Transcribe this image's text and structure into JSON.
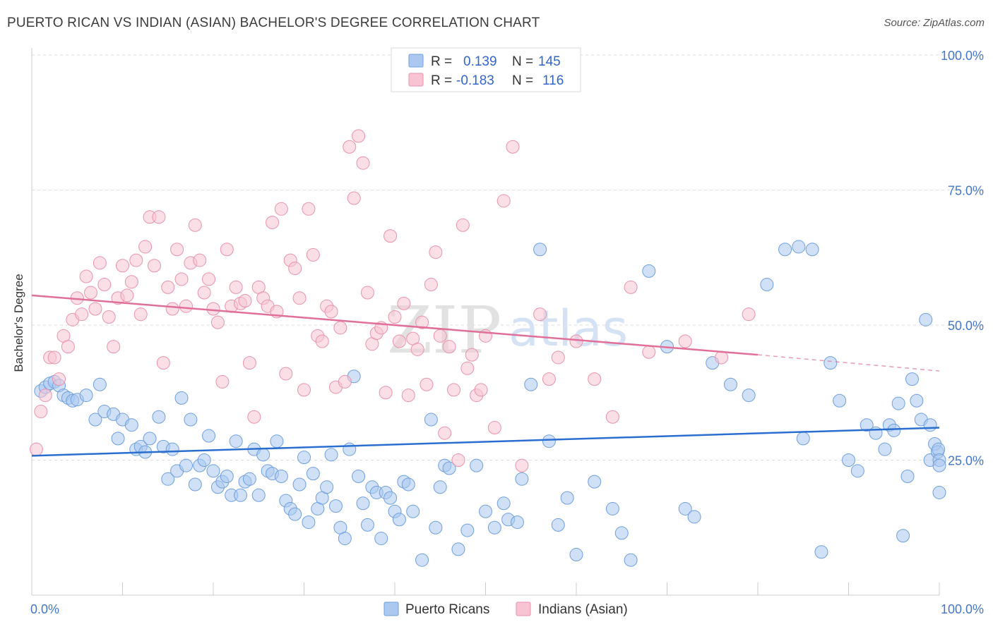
{
  "header": {
    "title": "PUERTO RICAN VS INDIAN (ASIAN) BACHELOR'S DEGREE CORRELATION CHART",
    "source": "Source: ZipAtlas.com"
  },
  "watermark": {
    "zip": "ZIP",
    "atlas": "atlas"
  },
  "legend": {
    "rows": [
      {
        "r_label": "R =",
        "r_value": "0.139",
        "n_label": "N =",
        "n_value": "145",
        "color": "#aac8f0",
        "stroke": "#6f9fdc"
      },
      {
        "r_label": "R =",
        "r_value": "-0.183",
        "n_label": "N =",
        "n_value": "116",
        "color": "#f8c4d4",
        "stroke": "#e892ac"
      }
    ]
  },
  "bottom_legend": [
    {
      "label": "Puerto Ricans",
      "color": "#aac8f0",
      "stroke": "#6f9fdc"
    },
    {
      "label": "Indians (Asian)",
      "color": "#f8c4d4",
      "stroke": "#e892ac"
    }
  ],
  "chart_data": {
    "type": "scatter",
    "title": "PUERTO RICAN VS INDIAN (ASIAN) BACHELOR'S DEGREE CORRELATION CHART",
    "xlabel": "",
    "ylabel": "Bachelor's Degree",
    "xlim": [
      0,
      100
    ],
    "ylim": [
      0,
      100
    ],
    "x_tick_labels": [
      "0.0%",
      "100.0%"
    ],
    "y_tick_labels": [
      "25.0%",
      "50.0%",
      "75.0%",
      "100.0%"
    ],
    "y_ticks": [
      25,
      50,
      75,
      100
    ],
    "grid": true,
    "legend_position": "top-center",
    "series": [
      {
        "name": "Puerto Ricans",
        "color": "#aac8f0",
        "stroke": "#6f9fdc",
        "trend": {
          "x": [
            0,
            100
          ],
          "y": [
            25.8,
            31.0
          ],
          "color": "#2a6fd0"
        },
        "points": [
          [
            1,
            37.8
          ],
          [
            1.5,
            38.5
          ],
          [
            2,
            39.2
          ],
          [
            2.5,
            39.5
          ],
          [
            3,
            38.8
          ],
          [
            3.5,
            37
          ],
          [
            4,
            36.5
          ],
          [
            4.5,
            36
          ],
          [
            5,
            36.2
          ],
          [
            6,
            37
          ],
          [
            7,
            32.5
          ],
          [
            7.5,
            39
          ],
          [
            8,
            34
          ],
          [
            9,
            33.5
          ],
          [
            9.5,
            29
          ],
          [
            10,
            32.5
          ],
          [
            11,
            31.5
          ],
          [
            11.5,
            27
          ],
          [
            12,
            27.5
          ],
          [
            12.5,
            26.5
          ],
          [
            13,
            29
          ],
          [
            14,
            33
          ],
          [
            14.5,
            27.5
          ],
          [
            15,
            21.5
          ],
          [
            15.5,
            27
          ],
          [
            16,
            23
          ],
          [
            16.5,
            36.5
          ],
          [
            17,
            24
          ],
          [
            17.5,
            32.5
          ],
          [
            18,
            20.5
          ],
          [
            18.5,
            24
          ],
          [
            19,
            25
          ],
          [
            19.5,
            29.5
          ],
          [
            20,
            23
          ],
          [
            20.5,
            20
          ],
          [
            21,
            21
          ],
          [
            21.5,
            22
          ],
          [
            22,
            18.5
          ],
          [
            22.5,
            28.5
          ],
          [
            23,
            18.5
          ],
          [
            23.5,
            21
          ],
          [
            24,
            21.5
          ],
          [
            24.5,
            27
          ],
          [
            25,
            18.5
          ],
          [
            25.5,
            26
          ],
          [
            26,
            23
          ],
          [
            26.5,
            22.5
          ],
          [
            27,
            28.5
          ],
          [
            27.5,
            22
          ],
          [
            28,
            17.5
          ],
          [
            28.5,
            16
          ],
          [
            29,
            15
          ],
          [
            29.5,
            20.5
          ],
          [
            30,
            25.5
          ],
          [
            30.5,
            13.5
          ],
          [
            31,
            22.5
          ],
          [
            31.5,
            16
          ],
          [
            32,
            18
          ],
          [
            32.5,
            20
          ],
          [
            33,
            26
          ],
          [
            33.5,
            16.5
          ],
          [
            34,
            12.5
          ],
          [
            34.5,
            10.5
          ],
          [
            35,
            27
          ],
          [
            35.5,
            40.5
          ],
          [
            36,
            22
          ],
          [
            36.5,
            17
          ],
          [
            37,
            13
          ],
          [
            37.5,
            20
          ],
          [
            38,
            19
          ],
          [
            38.5,
            10.5
          ],
          [
            39,
            19
          ],
          [
            39.5,
            18
          ],
          [
            40,
            15.5
          ],
          [
            40.5,
            14
          ],
          [
            41,
            21
          ],
          [
            41.5,
            20.5
          ],
          [
            42,
            15.5
          ],
          [
            43,
            6.5
          ],
          [
            44,
            32.5
          ],
          [
            44.5,
            12.5
          ],
          [
            45,
            20
          ],
          [
            45.5,
            24
          ],
          [
            46,
            23.5
          ],
          [
            47,
            8.5
          ],
          [
            48,
            12
          ],
          [
            49,
            24
          ],
          [
            50,
            15.5
          ],
          [
            51,
            12.5
          ],
          [
            52,
            17
          ],
          [
            52.5,
            14
          ],
          [
            53.5,
            13.5
          ],
          [
            54,
            21.5
          ],
          [
            55,
            39
          ],
          [
            56,
            64
          ],
          [
            57,
            28.5
          ],
          [
            58,
            13
          ],
          [
            59,
            18
          ],
          [
            60,
            7.5
          ],
          [
            62,
            21
          ],
          [
            64,
            16
          ],
          [
            65,
            11.5
          ],
          [
            66,
            6.5
          ],
          [
            68,
            60
          ],
          [
            70,
            46
          ],
          [
            72,
            16
          ],
          [
            73,
            14.5
          ],
          [
            75,
            43
          ],
          [
            77,
            39
          ],
          [
            79,
            37
          ],
          [
            81,
            57.5
          ],
          [
            83,
            64
          ],
          [
            84.5,
            64.5
          ],
          [
            85,
            29
          ],
          [
            86,
            64
          ],
          [
            87,
            8
          ],
          [
            88,
            43
          ],
          [
            89,
            36
          ],
          [
            90,
            25
          ],
          [
            91,
            23
          ],
          [
            92,
            31.5
          ],
          [
            93,
            30
          ],
          [
            94,
            27
          ],
          [
            94.5,
            31.5
          ],
          [
            95,
            30.5
          ],
          [
            95.5,
            35.5
          ],
          [
            96,
            11
          ],
          [
            96.5,
            22
          ],
          [
            97,
            40
          ],
          [
            97.5,
            36
          ],
          [
            98,
            32.5
          ],
          [
            98.5,
            51
          ],
          [
            99,
            25
          ],
          [
            99,
            31.5
          ],
          [
            99.5,
            28
          ],
          [
            99.8,
            26.5
          ],
          [
            99.9,
            27
          ],
          [
            100,
            25
          ],
          [
            100,
            24
          ],
          [
            100,
            19
          ]
        ]
      },
      {
        "name": "Indians (Asian)",
        "color": "#f8c4d4",
        "stroke": "#e892ac",
        "trend": {
          "x": [
            0,
            80
          ],
          "y": [
            55.5,
            44.5
          ],
          "dashed_to": [
            100,
            41.5
          ],
          "color": "#e0709a"
        },
        "points": [
          [
            0.5,
            27
          ],
          [
            1,
            34
          ],
          [
            1.5,
            37
          ],
          [
            2,
            44
          ],
          [
            2.5,
            44
          ],
          [
            3,
            40
          ],
          [
            3.5,
            48
          ],
          [
            4,
            46
          ],
          [
            4.5,
            51
          ],
          [
            5,
            55
          ],
          [
            5.5,
            52
          ],
          [
            6,
            59
          ],
          [
            6.5,
            56
          ],
          [
            7,
            53
          ],
          [
            7.5,
            61.5
          ],
          [
            8,
            57.5
          ],
          [
            8.5,
            51.5
          ],
          [
            9,
            46
          ],
          [
            9.5,
            55
          ],
          [
            10,
            61
          ],
          [
            10.5,
            55.5
          ],
          [
            11,
            58
          ],
          [
            11.5,
            62
          ],
          [
            12,
            52
          ],
          [
            12.5,
            64.5
          ],
          [
            13,
            70
          ],
          [
            13.5,
            61
          ],
          [
            14,
            70
          ],
          [
            14.5,
            43
          ],
          [
            15,
            57
          ],
          [
            15.5,
            53
          ],
          [
            16,
            64
          ],
          [
            16.5,
            58.5
          ],
          [
            17,
            53.5
          ],
          [
            17.5,
            61.5
          ],
          [
            18,
            68.5
          ],
          [
            18.5,
            62
          ],
          [
            19,
            56
          ],
          [
            19.5,
            58.5
          ],
          [
            20,
            53
          ],
          [
            20.5,
            50.5
          ],
          [
            21,
            39.5
          ],
          [
            21.5,
            64
          ],
          [
            22,
            53.5
          ],
          [
            22.5,
            57
          ],
          [
            23,
            54
          ],
          [
            23.5,
            54.5
          ],
          [
            24,
            43
          ],
          [
            24.5,
            33
          ],
          [
            25,
            57
          ],
          [
            25.5,
            55
          ],
          [
            26,
            53.5
          ],
          [
            26.5,
            69
          ],
          [
            27,
            52.5
          ],
          [
            27.5,
            71.5
          ],
          [
            28,
            41
          ],
          [
            28.5,
            62
          ],
          [
            29,
            60.5
          ],
          [
            29.5,
            55
          ],
          [
            30,
            38
          ],
          [
            30.5,
            71.5
          ],
          [
            31,
            63
          ],
          [
            31.5,
            48
          ],
          [
            32,
            47
          ],
          [
            32.5,
            53.5
          ],
          [
            33,
            52.5
          ],
          [
            33.5,
            38.5
          ],
          [
            34,
            49.5
          ],
          [
            34.5,
            39.5
          ],
          [
            35,
            83
          ],
          [
            35.5,
            73.5
          ],
          [
            36,
            85
          ],
          [
            36.5,
            80
          ],
          [
            37,
            56
          ],
          [
            37.5,
            46.5
          ],
          [
            38,
            48.5
          ],
          [
            38.5,
            49.5
          ],
          [
            39,
            37.5
          ],
          [
            39.5,
            66.5
          ],
          [
            40,
            51.5
          ],
          [
            40.5,
            47
          ],
          [
            41,
            54
          ],
          [
            41.5,
            37
          ],
          [
            42,
            47.5
          ],
          [
            42.5,
            45.5
          ],
          [
            43,
            50.5
          ],
          [
            43.5,
            39
          ],
          [
            44,
            57.5
          ],
          [
            44.5,
            63.5
          ],
          [
            45,
            48
          ],
          [
            45.5,
            30
          ],
          [
            46,
            46
          ],
          [
            46.5,
            38
          ],
          [
            47,
            25
          ],
          [
            47.5,
            68.5
          ],
          [
            48,
            42
          ],
          [
            48.5,
            44.5
          ],
          [
            49,
            37
          ],
          [
            49.5,
            38
          ],
          [
            50,
            48
          ],
          [
            51,
            31
          ],
          [
            52,
            73
          ],
          [
            53,
            83
          ],
          [
            54,
            24
          ],
          [
            56,
            52
          ],
          [
            57,
            40
          ],
          [
            58,
            44
          ],
          [
            60,
            47
          ],
          [
            62,
            40
          ],
          [
            64,
            33
          ],
          [
            66,
            57
          ],
          [
            68,
            45
          ],
          [
            72,
            47
          ],
          [
            76,
            44
          ],
          [
            79,
            52
          ]
        ]
      }
    ]
  }
}
